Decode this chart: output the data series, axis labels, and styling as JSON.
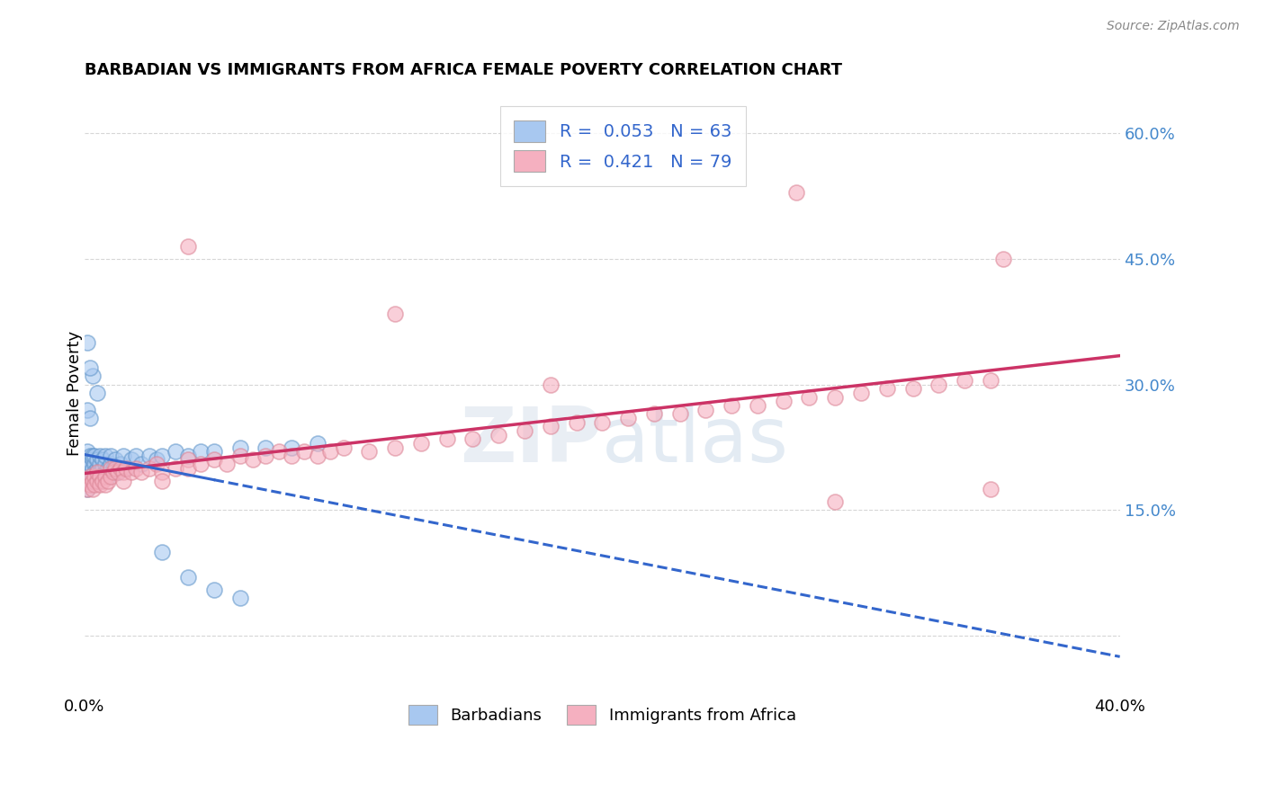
{
  "title": "BARBADIAN VS IMMIGRANTS FROM AFRICA FEMALE POVERTY CORRELATION CHART",
  "source": "Source: ZipAtlas.com",
  "ylabel": "Female Poverty",
  "xmin": 0.0,
  "xmax": 0.4,
  "ymin": -0.07,
  "ymax": 0.65,
  "barbadians_color": "#a8c8f0",
  "barbadians_edge": "#6699cc",
  "africa_color": "#f5b0c0",
  "africa_edge": "#dd8899",
  "barb_trend_color": "#3366cc",
  "africa_trend_color": "#cc3366",
  "legend_label_1": "R =  0.053   N = 63",
  "legend_label_2": "R =  0.421   N = 79",
  "legend_text_color": "#3366cc",
  "background_color": "#ffffff",
  "grid_color": "#cccccc",
  "yticks": [
    0.0,
    0.15,
    0.3,
    0.45,
    0.6
  ],
  "yticklabels": [
    "",
    "15.0%",
    "30.0%",
    "45.0%",
    "60.0%"
  ],
  "right_tick_color": "#4488cc",
  "barb_x": [
    0.001,
    0.001,
    0.001,
    0.001,
    0.001,
    0.002,
    0.002,
    0.002,
    0.002,
    0.003,
    0.003,
    0.003,
    0.003,
    0.004,
    0.004,
    0.004,
    0.005,
    0.005,
    0.005,
    0.005,
    0.006,
    0.006,
    0.006,
    0.007,
    0.007,
    0.007,
    0.008,
    0.008,
    0.008,
    0.009,
    0.009,
    0.01,
    0.01,
    0.011,
    0.012,
    0.013,
    0.014,
    0.015,
    0.016,
    0.018,
    0.02,
    0.022,
    0.025,
    0.028,
    0.03,
    0.035,
    0.04,
    0.045,
    0.05,
    0.06,
    0.07,
    0.08,
    0.09,
    0.03,
    0.04,
    0.05,
    0.06,
    0.005,
    0.003,
    0.002,
    0.001,
    0.001,
    0.002
  ],
  "barb_y": [
    0.19,
    0.2,
    0.21,
    0.22,
    0.175,
    0.195,
    0.205,
    0.215,
    0.185,
    0.2,
    0.21,
    0.215,
    0.19,
    0.205,
    0.195,
    0.215,
    0.2,
    0.21,
    0.195,
    0.185,
    0.205,
    0.195,
    0.215,
    0.2,
    0.21,
    0.19,
    0.205,
    0.195,
    0.215,
    0.2,
    0.19,
    0.205,
    0.215,
    0.2,
    0.21,
    0.195,
    0.205,
    0.215,
    0.2,
    0.21,
    0.215,
    0.205,
    0.215,
    0.21,
    0.215,
    0.22,
    0.215,
    0.22,
    0.22,
    0.225,
    0.225,
    0.225,
    0.23,
    0.1,
    0.07,
    0.055,
    0.045,
    0.29,
    0.31,
    0.32,
    0.35,
    0.27,
    0.26
  ],
  "africa_x": [
    0.001,
    0.001,
    0.002,
    0.002,
    0.003,
    0.003,
    0.004,
    0.004,
    0.005,
    0.005,
    0.006,
    0.006,
    0.007,
    0.008,
    0.008,
    0.009,
    0.01,
    0.01,
    0.011,
    0.012,
    0.013,
    0.014,
    0.015,
    0.015,
    0.016,
    0.018,
    0.02,
    0.022,
    0.025,
    0.028,
    0.03,
    0.03,
    0.035,
    0.04,
    0.04,
    0.045,
    0.05,
    0.055,
    0.06,
    0.065,
    0.07,
    0.075,
    0.08,
    0.085,
    0.09,
    0.095,
    0.1,
    0.11,
    0.12,
    0.13,
    0.14,
    0.15,
    0.16,
    0.17,
    0.18,
    0.19,
    0.2,
    0.21,
    0.22,
    0.23,
    0.24,
    0.25,
    0.26,
    0.27,
    0.28,
    0.29,
    0.3,
    0.31,
    0.32,
    0.33,
    0.34,
    0.35,
    0.04,
    0.35,
    0.29,
    0.18,
    0.12,
    0.275,
    0.355
  ],
  "africa_y": [
    0.185,
    0.175,
    0.19,
    0.18,
    0.185,
    0.175,
    0.19,
    0.18,
    0.185,
    0.195,
    0.19,
    0.18,
    0.185,
    0.19,
    0.18,
    0.185,
    0.19,
    0.2,
    0.195,
    0.2,
    0.195,
    0.2,
    0.195,
    0.185,
    0.2,
    0.195,
    0.2,
    0.195,
    0.2,
    0.205,
    0.195,
    0.185,
    0.2,
    0.21,
    0.2,
    0.205,
    0.21,
    0.205,
    0.215,
    0.21,
    0.215,
    0.22,
    0.215,
    0.22,
    0.215,
    0.22,
    0.225,
    0.22,
    0.225,
    0.23,
    0.235,
    0.235,
    0.24,
    0.245,
    0.25,
    0.255,
    0.255,
    0.26,
    0.265,
    0.265,
    0.27,
    0.275,
    0.275,
    0.28,
    0.285,
    0.285,
    0.29,
    0.295,
    0.295,
    0.3,
    0.305,
    0.305,
    0.465,
    0.175,
    0.16,
    0.3,
    0.385,
    0.53,
    0.45
  ]
}
